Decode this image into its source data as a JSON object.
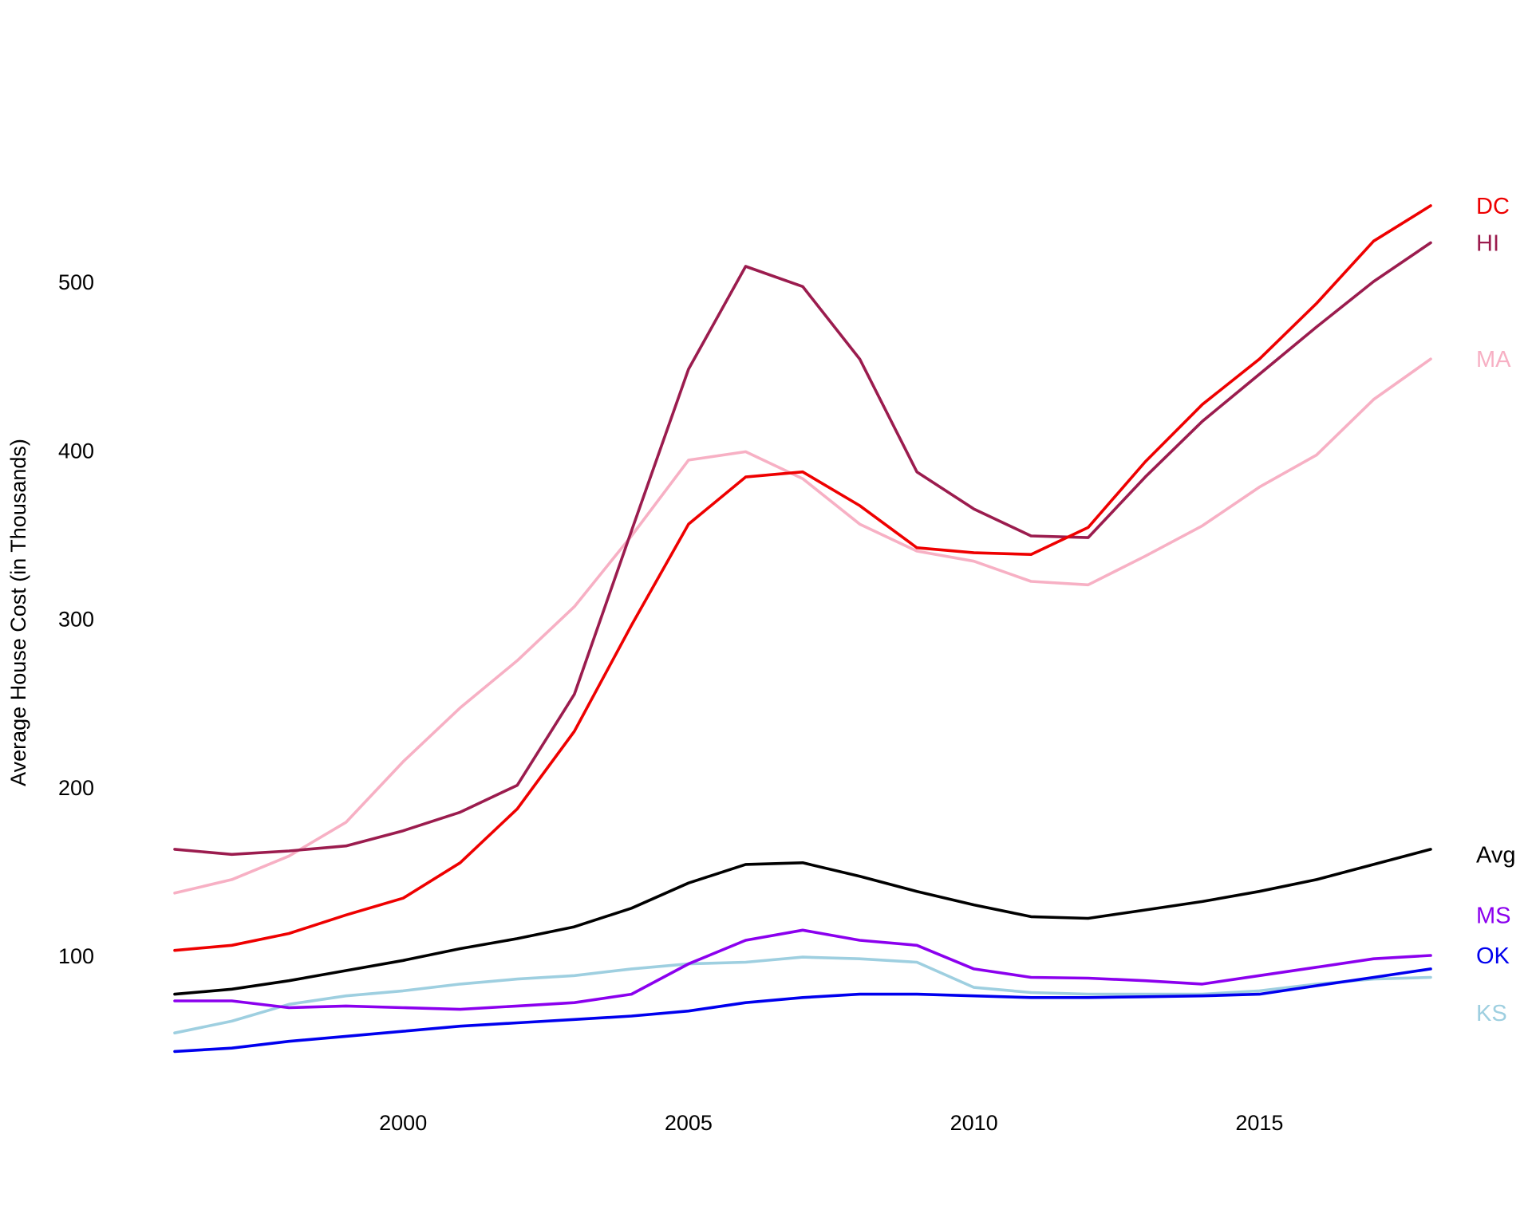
{
  "chart_data": {
    "type": "line",
    "title": "",
    "xlabel": "",
    "ylabel": "Average House Cost (in Thousands)",
    "xlim": [
      1996,
      2018
    ],
    "ylim": [
      35,
      585
    ],
    "grid": false,
    "legend": "direct labels at right end of lines",
    "x_ticks": [
      {
        "value": 2000,
        "label": "2000"
      },
      {
        "value": 2005,
        "label": "2005"
      },
      {
        "value": 2010,
        "label": "2010"
      },
      {
        "value": 2015,
        "label": "2015"
      }
    ],
    "y_ticks": [
      {
        "value": 100,
        "label": "100"
      },
      {
        "value": 200,
        "label": "200"
      },
      {
        "value": 300,
        "label": "300"
      },
      {
        "value": 400,
        "label": "400"
      },
      {
        "value": 500,
        "label": "500"
      }
    ],
    "x": [
      1996,
      1997,
      1998,
      1999,
      2000,
      2001,
      2002,
      2003,
      2004,
      2005,
      2006,
      2007,
      2008,
      2009,
      2010,
      2011,
      2012,
      2013,
      2014,
      2015,
      2016,
      2017,
      2018
    ],
    "series": [
      {
        "name": "KS",
        "label": "KS",
        "color": "#9ecfe0",
        "label_value": 66,
        "values": [
          54,
          61,
          71,
          76,
          79,
          83,
          86,
          88,
          92,
          95,
          96,
          99,
          98,
          96,
          81,
          78,
          77,
          77,
          77,
          79,
          83,
          86,
          87
        ]
      },
      {
        "name": "OK",
        "label": "OK",
        "color": "#0000ee",
        "label_value": 100,
        "values": [
          43,
          45,
          49,
          52,
          55,
          58,
          60,
          62,
          64,
          67,
          72,
          75,
          77,
          77,
          76,
          75,
          75,
          75.5,
          76,
          77,
          82,
          87,
          92
        ]
      },
      {
        "name": "MS",
        "label": "MS",
        "color": "#8b00ee",
        "label_value": 124,
        "values": [
          73,
          73,
          69,
          70,
          69,
          68,
          70,
          72,
          77,
          95,
          109,
          115,
          109,
          106,
          92,
          87,
          86.5,
          85,
          83,
          88,
          93,
          98,
          100
        ]
      },
      {
        "name": "Avg",
        "label": "Avg",
        "color": "#000000",
        "label_value": 160,
        "values": [
          77,
          80,
          85,
          91,
          97,
          104,
          110,
          117,
          128,
          143,
          154,
          155,
          147,
          138,
          130,
          123,
          122,
          127,
          132,
          138,
          145,
          154,
          163
        ]
      },
      {
        "name": "MA",
        "label": "MA",
        "color": "#f7b0c4",
        "label_value": 454,
        "values": [
          137,
          145,
          159,
          179,
          215,
          247,
          275,
          307,
          349,
          394,
          399,
          383,
          356,
          340,
          334,
          322,
          320,
          337,
          355,
          378,
          397,
          430,
          454
        ]
      },
      {
        "name": "HI",
        "label": "HI",
        "color": "#9b1c4e",
        "label_value": 523,
        "values": [
          163,
          160,
          162,
          165,
          174,
          185,
          201,
          255,
          352,
          448,
          509,
          497,
          454,
          387,
          365,
          349,
          348,
          384,
          417,
          445,
          473,
          500,
          523
        ]
      },
      {
        "name": "DC",
        "label": "DC",
        "color": "#ee0000",
        "label_value": 545,
        "values": [
          103,
          106,
          113,
          124,
          134,
          155,
          187,
          233,
          296,
          356,
          384,
          387,
          367,
          342,
          339,
          338,
          354,
          393,
          427,
          454,
          487,
          524,
          545
        ]
      }
    ]
  }
}
